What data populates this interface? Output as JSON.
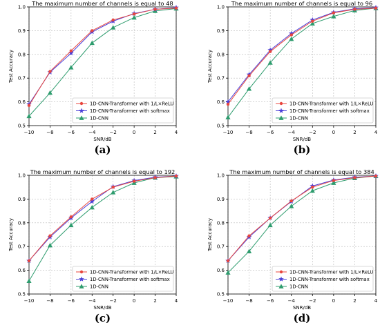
{
  "chart_data": [
    {
      "type": "line",
      "title": "The maximum number of channels is equal to 48",
      "xlabel": "SNR/dB",
      "ylabel": "Test Accuracy",
      "caption": "(a)",
      "x": [
        -10,
        -8,
        -6,
        -4,
        -2,
        0,
        2,
        4
      ],
      "xticks": [
        "−10",
        "−8",
        "−6",
        "−4",
        "−2",
        "0",
        "2",
        "4"
      ],
      "yticks": [
        "0.5",
        "0.6",
        "0.7",
        "0.8",
        "0.9",
        "1.0"
      ],
      "xlim": [
        -10,
        4
      ],
      "ylim": [
        0.5,
        1.0
      ],
      "grid": true,
      "legend_position": "lower-right",
      "series": [
        {
          "name": "1D-CNN-Transformer with 1/L×ReLU",
          "color": "#e8463e",
          "marker": "dot",
          "values": [
            0.585,
            0.728,
            0.815,
            0.9,
            0.945,
            0.97,
            0.99,
            0.995
          ]
        },
        {
          "name": "1D-CNN-Transformer with softmax",
          "color": "#4b3fd8",
          "marker": "star",
          "values": [
            0.59,
            0.725,
            0.805,
            0.895,
            0.94,
            0.972,
            0.99,
            0.997
          ]
        },
        {
          "name": "1D-CNN",
          "color": "#2e9c6e",
          "marker": "triangle",
          "values": [
            0.54,
            0.638,
            0.745,
            0.848,
            0.913,
            0.955,
            0.983,
            0.993
          ]
        }
      ]
    },
    {
      "type": "line",
      "title": "The maximum number of channels is equal to 96",
      "xlabel": "SNR/dB",
      "ylabel": "Test Accuracy",
      "caption": "(b)",
      "x": [
        -10,
        -8,
        -6,
        -4,
        -2,
        0,
        2,
        4
      ],
      "xticks": [
        "−10",
        "−8",
        "−6",
        "−4",
        "−2",
        "0",
        "2",
        "4"
      ],
      "yticks": [
        "0.5",
        "0.6",
        "0.7",
        "0.8",
        "0.9",
        "1.0"
      ],
      "xlim": [
        -10,
        4
      ],
      "ylim": [
        0.5,
        1.0
      ],
      "grid": true,
      "legend_position": "lower-right",
      "series": [
        {
          "name": "1D-CNN-Transformer with 1/L×ReLU",
          "color": "#e8463e",
          "marker": "dot",
          "values": [
            0.59,
            0.71,
            0.812,
            0.882,
            0.94,
            0.975,
            0.99,
            0.995
          ]
        },
        {
          "name": "1D-CNN-Transformer with softmax",
          "color": "#4b3fd8",
          "marker": "star",
          "values": [
            0.6,
            0.715,
            0.818,
            0.888,
            0.945,
            0.977,
            0.992,
            0.997
          ]
        },
        {
          "name": "1D-CNN",
          "color": "#2e9c6e",
          "marker": "triangle",
          "values": [
            0.535,
            0.655,
            0.765,
            0.865,
            0.93,
            0.96,
            0.985,
            0.995
          ]
        }
      ]
    },
    {
      "type": "line",
      "title": "The maximum number of channels is equal to 192",
      "xlabel": "SNR/dB",
      "ylabel": "Test Accuracy",
      "caption": "(c)",
      "x": [
        -10,
        -8,
        -6,
        -4,
        -2,
        0,
        2,
        4
      ],
      "xticks": [
        "−10",
        "−8",
        "−6",
        "−4",
        "−2",
        "0",
        "2",
        "4"
      ],
      "yticks": [
        "0.5",
        "0.6",
        "0.7",
        "0.8",
        "0.9",
        "1.0"
      ],
      "xlim": [
        -10,
        4
      ],
      "ylim": [
        0.5,
        1.0
      ],
      "grid": true,
      "legend_position": "lower-right",
      "series": [
        {
          "name": "1D-CNN-Transformer with 1/L×ReLU",
          "color": "#e8463e",
          "marker": "dot",
          "values": [
            0.64,
            0.745,
            0.825,
            0.9,
            0.95,
            0.975,
            0.99,
            0.997
          ]
        },
        {
          "name": "1D-CNN-Transformer with softmax",
          "color": "#4b3fd8",
          "marker": "star",
          "values": [
            0.64,
            0.74,
            0.82,
            0.89,
            0.952,
            0.978,
            0.992,
            0.997
          ]
        },
        {
          "name": "1D-CNN",
          "color": "#2e9c6e",
          "marker": "triangle",
          "values": [
            0.555,
            0.705,
            0.79,
            0.865,
            0.928,
            0.968,
            0.99,
            0.995
          ]
        }
      ]
    },
    {
      "type": "line",
      "title": "The maximum number of channels is equal to 384",
      "xlabel": "SNR/dB",
      "ylabel": "Test Accuracy",
      "caption": "(d)",
      "x": [
        -10,
        -8,
        -6,
        -4,
        -2,
        0,
        2,
        4
      ],
      "xticks": [
        "−10",
        "−8",
        "−6",
        "−4",
        "−2",
        "0",
        "2",
        "4"
      ],
      "yticks": [
        "0.5",
        "0.6",
        "0.7",
        "0.8",
        "0.9",
        "1.0"
      ],
      "xlim": [
        -10,
        4
      ],
      "ylim": [
        0.5,
        1.0
      ],
      "grid": true,
      "legend_position": "lower-right",
      "series": [
        {
          "name": "1D-CNN-Transformer with 1/L×ReLU",
          "color": "#e8463e",
          "marker": "dot",
          "values": [
            0.64,
            0.745,
            0.82,
            0.892,
            0.95,
            0.978,
            0.99,
            0.997
          ]
        },
        {
          "name": "1D-CNN-Transformer with softmax",
          "color": "#4b3fd8",
          "marker": "star",
          "values": [
            0.64,
            0.74,
            0.82,
            0.89,
            0.955,
            0.98,
            0.992,
            0.997
          ]
        },
        {
          "name": "1D-CNN",
          "color": "#2e9c6e",
          "marker": "triangle",
          "values": [
            0.59,
            0.68,
            0.79,
            0.87,
            0.935,
            0.968,
            0.988,
            0.997
          ]
        }
      ]
    }
  ]
}
